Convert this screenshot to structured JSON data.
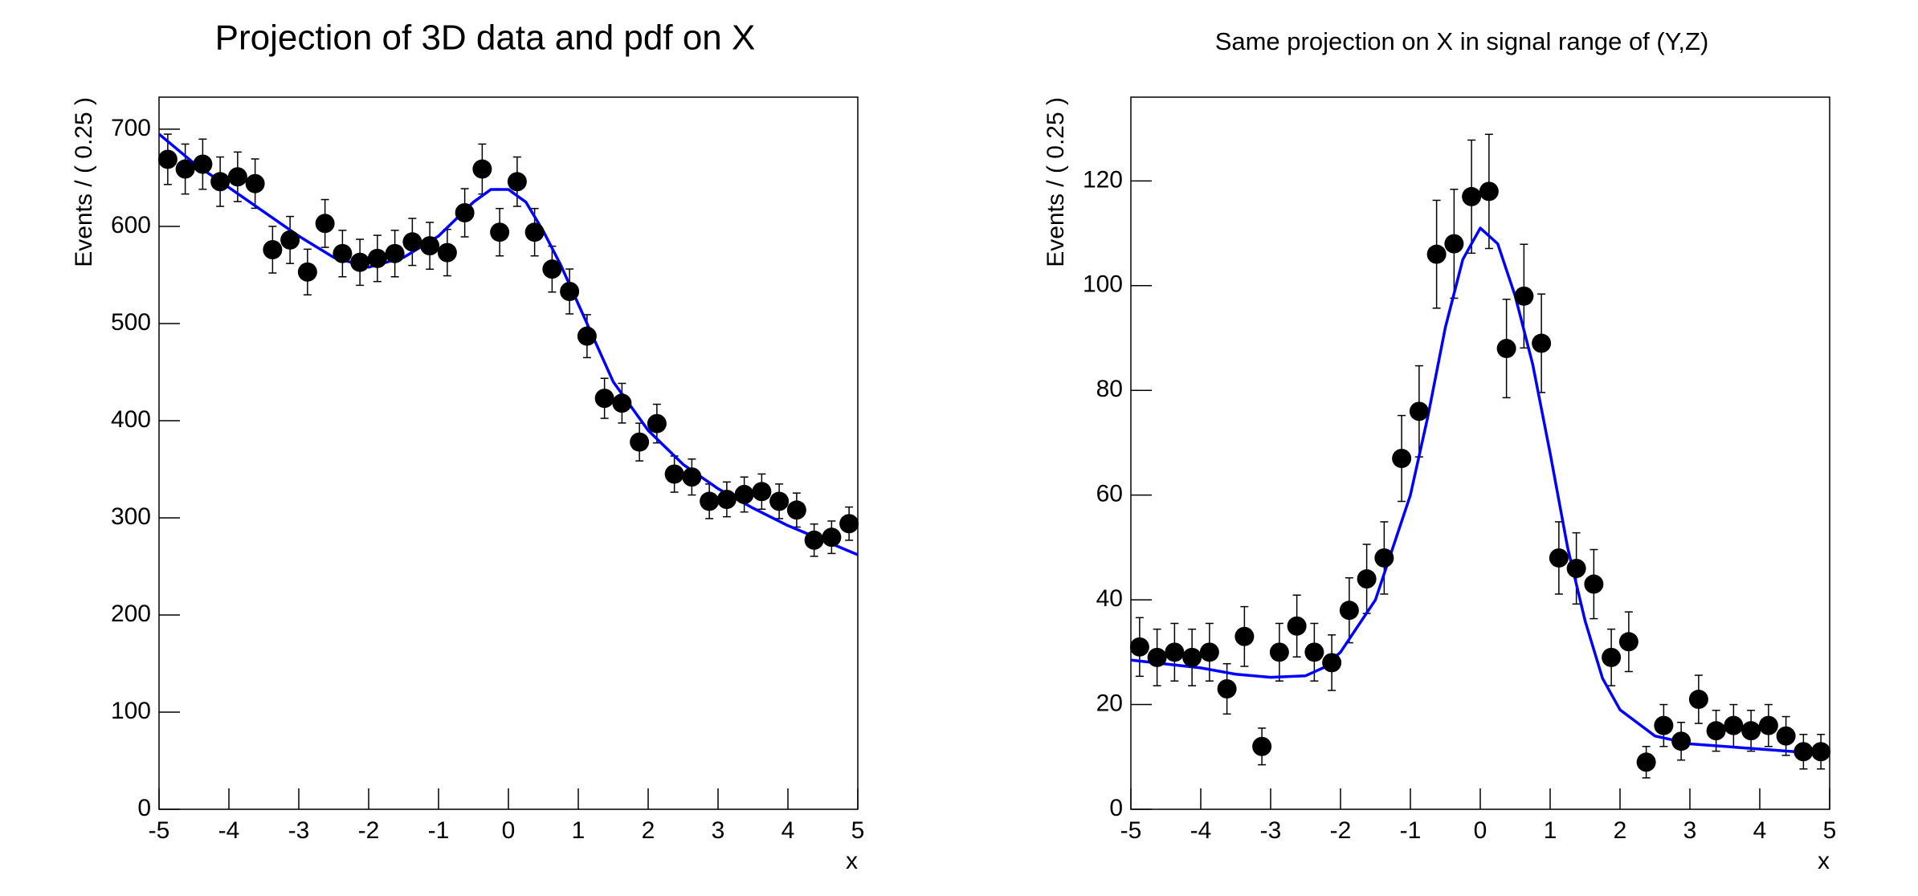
{
  "chart_data": [
    {
      "type": "scatter",
      "title": "Projection of 3D data and pdf on X",
      "x_label": "x",
      "y_label": "Events / ( 0.25 )",
      "x": [
        -4.875,
        -4.625,
        -4.375,
        -4.125,
        -3.875,
        -3.625,
        -3.375,
        -3.125,
        -2.875,
        -2.625,
        -2.375,
        -2.125,
        -1.875,
        -1.625,
        -1.375,
        -1.125,
        -0.875,
        -0.625,
        -0.375,
        -0.125,
        0.125,
        0.375,
        0.625,
        0.875,
        1.125,
        1.375,
        1.625,
        1.875,
        2.125,
        2.375,
        2.625,
        2.875,
        3.125,
        3.375,
        3.625,
        3.875,
        4.125,
        4.375,
        4.625,
        4.875
      ],
      "values": [
        669,
        659,
        664,
        646,
        651,
        644,
        576,
        586,
        553,
        603,
        572,
        563,
        567,
        572,
        584,
        580,
        573,
        614,
        659,
        594,
        646,
        594,
        556,
        533,
        487,
        423,
        418,
        378,
        397,
        345,
        342,
        317,
        319,
        324,
        327,
        317,
        308,
        277,
        280,
        294
      ],
      "errors": [
        25.9,
        25.7,
        25.8,
        25.4,
        25.5,
        25.4,
        24.0,
        24.2,
        23.5,
        24.6,
        23.9,
        23.7,
        23.8,
        23.9,
        24.2,
        24.1,
        23.9,
        24.8,
        25.7,
        24.4,
        25.4,
        24.4,
        23.6,
        23.1,
        22.1,
        20.6,
        20.4,
        19.4,
        19.9,
        18.6,
        18.5,
        17.8,
        17.9,
        18.0,
        18.1,
        17.8,
        17.5,
        16.6,
        16.7,
        17.1
      ],
      "color": "#000000",
      "curve": {
        "color": "#0000ff",
        "x": [
          -5,
          -4.5,
          -4,
          -3.5,
          -3,
          -2.5,
          -2,
          -1.5,
          -1,
          -0.5,
          -0.25,
          0,
          0.25,
          0.5,
          0.75,
          1,
          1.5,
          2,
          2.5,
          3,
          3.5,
          4,
          4.5,
          5
        ],
        "values": [
          695,
          665,
          640,
          615,
          590,
          568,
          558,
          568,
          590,
          625,
          638,
          638,
          625,
          595,
          560,
          520,
          440,
          390,
          355,
          330,
          310,
          292,
          277,
          262
        ]
      },
      "xlim": [
        -5,
        5
      ],
      "xticks": [
        -5,
        -4,
        -3,
        -2,
        -1,
        0,
        1,
        2,
        3,
        4,
        5
      ],
      "ylim": [
        0,
        733
      ],
      "yticks": [
        0,
        100,
        200,
        300,
        400,
        500,
        600,
        700
      ]
    },
    {
      "type": "scatter",
      "title": "Same projection on X in signal range of (Y,Z)",
      "x_label": "x",
      "y_label": "Events / ( 0.25 )",
      "x": [
        -4.875,
        -4.625,
        -4.375,
        -4.125,
        -3.875,
        -3.625,
        -3.375,
        -3.125,
        -2.875,
        -2.625,
        -2.375,
        -2.125,
        -1.875,
        -1.625,
        -1.375,
        -1.125,
        -0.875,
        -0.625,
        -0.375,
        -0.125,
        0.125,
        0.375,
        0.625,
        0.875,
        1.125,
        1.375,
        1.625,
        1.875,
        2.125,
        2.375,
        2.625,
        2.875,
        3.125,
        3.375,
        3.625,
        3.875,
        4.125,
        4.375,
        4.625,
        4.875
      ],
      "values": [
        31,
        29,
        30,
        29,
        30,
        23,
        33,
        12,
        30,
        35,
        30,
        28,
        38,
        44,
        48,
        67,
        76,
        106,
        108,
        117,
        118,
        88,
        98,
        89,
        48,
        46,
        43,
        29,
        32,
        9,
        16,
        13,
        21,
        15,
        16,
        15,
        16,
        14,
        11,
        11
      ],
      "errors": [
        5.6,
        5.4,
        5.5,
        5.4,
        5.5,
        4.8,
        5.7,
        3.5,
        5.5,
        5.9,
        5.5,
        5.3,
        6.2,
        6.6,
        6.9,
        8.2,
        8.7,
        10.3,
        10.4,
        10.8,
        10.9,
        9.4,
        9.9,
        9.4,
        6.9,
        6.8,
        6.6,
        5.4,
        5.7,
        3.0,
        4.0,
        3.6,
        4.6,
        3.9,
        4.0,
        3.9,
        4.0,
        3.7,
        3.3,
        3.3
      ],
      "color": "#000000",
      "curve": {
        "color": "#0000ff",
        "x": [
          -5,
          -4,
          -3.5,
          -3,
          -2.5,
          -2.25,
          -2,
          -1.5,
          -1,
          -0.75,
          -0.5,
          -0.25,
          0,
          0.25,
          0.5,
          0.75,
          1,
          1.25,
          1.5,
          1.75,
          2,
          2.5,
          3,
          4,
          5
        ],
        "values": [
          28.5,
          27,
          25.8,
          25.2,
          25.5,
          27,
          30,
          40,
          60,
          75,
          92,
          105,
          111,
          108,
          98,
          85,
          68,
          50,
          36,
          25,
          19,
          14,
          12.5,
          11.5,
          10.5
        ]
      },
      "xlim": [
        -5,
        5
      ],
      "xticks": [
        -5,
        -4,
        -3,
        -2,
        -1,
        0,
        1,
        2,
        3,
        4,
        5
      ],
      "ylim": [
        0,
        136
      ],
      "yticks": [
        0,
        20,
        40,
        60,
        80,
        100,
        120
      ]
    }
  ]
}
